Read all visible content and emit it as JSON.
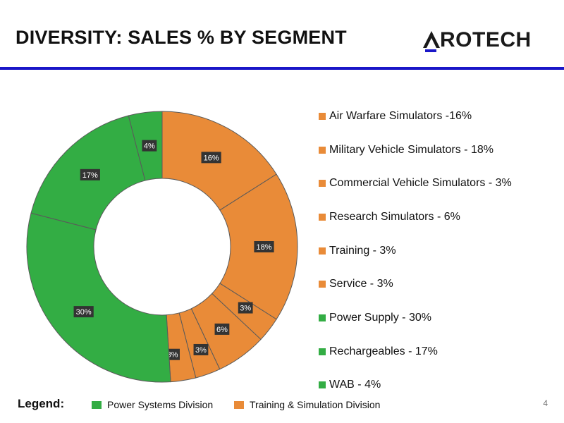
{
  "header": {
    "title": "DIVERSITY: SALES % BY SEGMENT",
    "logo_text": "ROTECH"
  },
  "colors": {
    "training_simulation": "#e98b38",
    "power_systems": "#33ad44",
    "rule": "#1a17c8",
    "label_bg": "#333333"
  },
  "chart_data": {
    "type": "pie",
    "style": "donut",
    "title": "Sales % by Segment",
    "series": [
      {
        "name": "Air Warfare Simulators",
        "value": 16,
        "label": "16%",
        "division": "Training & Simulation Division"
      },
      {
        "name": "Military Vehicle Simulators",
        "value": 18,
        "label": "18%",
        "division": "Training & Simulation Division"
      },
      {
        "name": "Commercial Vehicle Simulators",
        "value": 3,
        "label": "3%",
        "division": "Training & Simulation Division"
      },
      {
        "name": "Research Simulators",
        "value": 6,
        "label": "6%",
        "division": "Training & Simulation Division"
      },
      {
        "name": "Training",
        "value": 3,
        "label": "3%",
        "division": "Training & Simulation Division"
      },
      {
        "name": "Service",
        "value": 3,
        "label": "3%",
        "division": "Training & Simulation Division"
      },
      {
        "name": "Power Supply",
        "value": 30,
        "label": "30%",
        "division": "Power Systems Division"
      },
      {
        "name": "Rechargeables",
        "value": 17,
        "label": "17%",
        "division": "Power Systems Division"
      },
      {
        "name": "WAB",
        "value": 4,
        "label": "4%",
        "division": "Power Systems Division"
      }
    ],
    "legend_entries": [
      "Air Warfare Simulators -16%",
      "Military Vehicle Simulators - 18%",
      "Commercial Vehicle Simulators - 3%",
      "Research Simulators - 6%",
      "Training - 3%",
      "Service - 3%",
      "Power Supply - 30%",
      "Rechargeables - 17%",
      "WAB - 4%"
    ],
    "legend_position": "right"
  },
  "footer": {
    "legend_label": "Legend:",
    "power_label": "Power Systems Division",
    "training_label": "Training & Simulation Division",
    "page_number": "4"
  }
}
